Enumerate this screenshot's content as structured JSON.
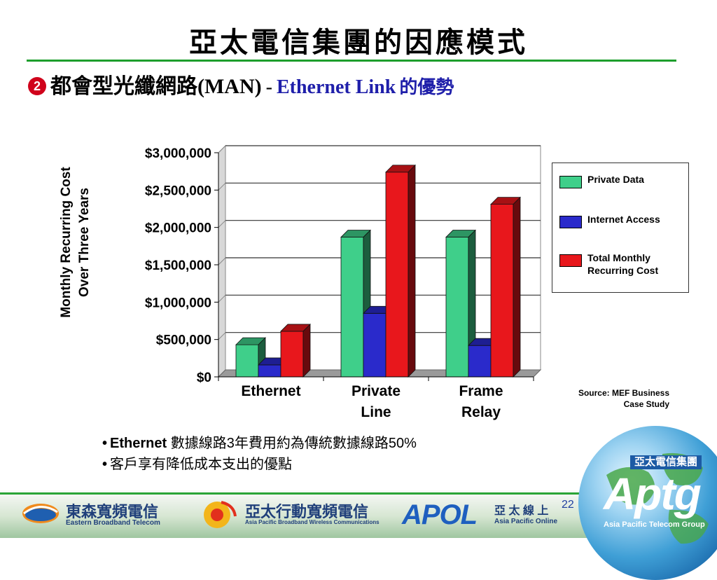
{
  "slide": {
    "title": "亞太電信集團的因應模式",
    "subtitle": {
      "bullet": "2",
      "main": "都會型光纖網路",
      "latin": "(MAN)",
      "separator": "-",
      "blue_latin": "Ethernet Link",
      "blue_cjk": "的優勢"
    }
  },
  "chart_data": {
    "type": "bar",
    "ylabel_lines": [
      "Monthly Recurring Cost",
      "Over Three Years"
    ],
    "ylim": [
      0,
      3000000
    ],
    "yticks": [
      {
        "value": 0,
        "label": "$0"
      },
      {
        "value": 500000,
        "label": "$500,000"
      },
      {
        "value": 1000000,
        "label": "$1,000,000"
      },
      {
        "value": 1500000,
        "label": "$1,500,000"
      },
      {
        "value": 2000000,
        "label": "$2,000,000"
      },
      {
        "value": 2500000,
        "label": "$2,500,000"
      },
      {
        "value": 3000000,
        "label": "$3,000,000"
      }
    ],
    "categories": [
      {
        "label_lines": [
          "Ethernet"
        ]
      },
      {
        "label_lines": [
          "Private",
          "Line"
        ]
      },
      {
        "label_lines": [
          "Frame",
          "Relay"
        ]
      }
    ],
    "series": [
      {
        "name": "Private Data",
        "color": "#3fcf8a",
        "values": [
          430000,
          1870000,
          1870000
        ]
      },
      {
        "name": "Internet Access",
        "color": "#2a2acb",
        "values": [
          160000,
          850000,
          420000
        ]
      },
      {
        "name": "Total Monthly Recurring Cost",
        "color": "#e8171c",
        "values": [
          610000,
          2740000,
          2310000
        ]
      }
    ],
    "grid": true,
    "legend_position": "right",
    "style": "3d"
  },
  "legend": {
    "items": [
      {
        "lines": [
          "Private Data"
        ],
        "color": "#3fcf8a"
      },
      {
        "lines": [
          "Internet Access"
        ],
        "color": "#2a2acb"
      },
      {
        "lines": [
          "Total Monthly",
          "Recurring Cost"
        ],
        "color": "#e8171c"
      }
    ]
  },
  "source": {
    "line1": "Source:  MEF Business",
    "line2": "Case Study"
  },
  "notes": [
    {
      "latin": "Ethernet ",
      "text": "數據線路3年費用約為傳統數據線路50%"
    },
    {
      "latin": "",
      "text": "客戶享有降低成本支出的優點"
    }
  ],
  "footer": {
    "logos": [
      {
        "cn": "東森寬頻電信",
        "en": "Eastern Broadband Telecom"
      },
      {
        "cn": "亞太行動寬頻電信",
        "en": "Asia Pacific Broadband Wireless Communications"
      },
      {
        "word": "APOL",
        "cn": "亞 太 線 上",
        "en": "Asia Pacific Online"
      }
    ],
    "aptg": {
      "group": "亞太電信集團",
      "word": "Aptg",
      "en": "Asia Pacific Telecom Group"
    },
    "page_number": "22"
  }
}
